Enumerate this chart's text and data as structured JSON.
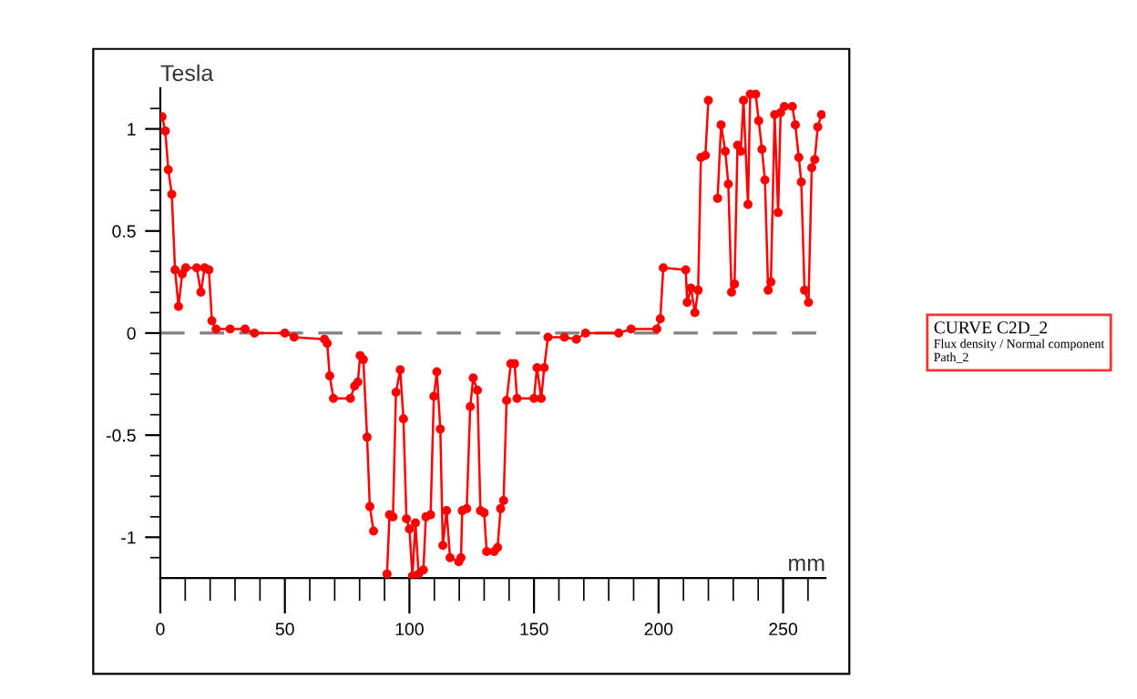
{
  "chart_data": {
    "type": "line",
    "xlabel": "mm",
    "ylabel": "Tesla",
    "xlim": [
      0,
      267
    ],
    "ylim": [
      -1.2,
      1.2
    ],
    "xticks": [
      0,
      {
        "value": 10,
        "label": null
      },
      {
        "value": 20,
        "label": null
      },
      {
        "value": 30,
        "label": null
      },
      {
        "value": 40,
        "label": null
      },
      50,
      {
        "value": 60,
        "label": null
      },
      {
        "value": 70,
        "label": null
      },
      {
        "value": 80,
        "label": null
      },
      {
        "value": 90,
        "label": null
      },
      100,
      {
        "value": 110,
        "label": null
      },
      {
        "value": 120,
        "label": null
      },
      {
        "value": 130,
        "label": null
      },
      {
        "value": 140,
        "label": null
      },
      150,
      {
        "value": 160,
        "label": null
      },
      {
        "value": 170,
        "label": null
      },
      {
        "value": 180,
        "label": null
      },
      {
        "value": 190,
        "label": null
      },
      200,
      {
        "value": 210,
        "label": null
      },
      {
        "value": 220,
        "label": null
      },
      {
        "value": 230,
        "label": null
      },
      {
        "value": 240,
        "label": null
      },
      250,
      {
        "value": 260,
        "label": null
      }
    ],
    "yticks": [
      {
        "value": -1.1,
        "label": null
      },
      -1,
      {
        "value": -0.9,
        "label": null
      },
      {
        "value": -0.8,
        "label": null
      },
      {
        "value": -0.7,
        "label": null
      },
      {
        "value": -0.6,
        "label": null
      },
      -0.5,
      {
        "value": -0.4,
        "label": null
      },
      {
        "value": -0.3,
        "label": null
      },
      {
        "value": -0.2,
        "label": null
      },
      {
        "value": -0.1,
        "label": null
      },
      0,
      {
        "value": 0.1,
        "label": null
      },
      {
        "value": 0.2,
        "label": null
      },
      {
        "value": 0.3,
        "label": null
      },
      {
        "value": 0.4,
        "label": null
      },
      0.5,
      {
        "value": 0.6,
        "label": null
      },
      {
        "value": 0.7,
        "label": null
      },
      {
        "value": 0.8,
        "label": null
      },
      {
        "value": 0.9,
        "label": null
      },
      1,
      {
        "value": 1.1,
        "label": null
      }
    ],
    "ref_lines": [
      {
        "axis": "y",
        "value": 0,
        "label": null,
        "color": "#808080",
        "line_style": "dashed"
      }
    ],
    "grid": false,
    "legend": "right",
    "marker": "circle",
    "line_style": "solid",
    "annotations": [
      "Flux density / Normal component",
      "Path_2"
    ],
    "series": [
      {
        "name": "CURVE C2D_2",
        "color": "#ff0000",
        "x": [
          0.7,
          2,
          3.2,
          4.6,
          5.9,
          7.3,
          8.8,
          10.2,
          14.6,
          16.3,
          17.8,
          19.5,
          20.7,
          22.4,
          28,
          34,
          37.8,
          50,
          53.7,
          65.9,
          67,
          68,
          69.5,
          76.3,
          78,
          79.3,
          80.2,
          81.5,
          83,
          84.1,
          85.6,
          86.8,
          89.5,
          91,
          92,
          93.4,
          94.6,
          96.3,
          97.6,
          98.8,
          100,
          101.2,
          102.4,
          103.7,
          105.6,
          106.6,
          108.5,
          109.8,
          111,
          112.4,
          113.4,
          114.9,
          116.3,
          119.8,
          120.7,
          121.2,
          123,
          124.4,
          125.6,
          127.3,
          128.5,
          130,
          131,
          134,
          135.4,
          136.6,
          137.8,
          139,
          140.7,
          142.2,
          143.2,
          150,
          151.2,
          152.9,
          154.1,
          155.6,
          162.2,
          167,
          170.7,
          184,
          189,
          199.3,
          200.7,
          201.9,
          210.9,
          211.5,
          213,
          214.6,
          215.9,
          217,
          218.8,
          220,
          221.2,
          222.7,
          223.7,
          225.1,
          226.8,
          228,
          229.3,
          230.5,
          231.7,
          233,
          234.1,
          235.9,
          236.8,
          239,
          240.2,
          241.5,
          242.7,
          244,
          245.1,
          246.6,
          248,
          249,
          250.5,
          253.7,
          254.9,
          256.3,
          257.3,
          258.6,
          260.2,
          261.5,
          262.7,
          263.9,
          265.4
        ],
        "values": [
          1.06,
          0.99,
          0.8,
          0.68,
          0.31,
          0.13,
          0.29,
          0.32,
          0.32,
          0.2,
          0.32,
          0.31,
          0.06,
          0.02,
          0.02,
          0.02,
          0,
          0,
          -0.02,
          -0.03,
          -0.05,
          -0.21,
          -0.32,
          -0.32,
          -0.26,
          -0.24,
          -0.11,
          -0.13,
          -0.51,
          -0.85,
          -0.97,
          null,
          null,
          -1.18,
          -0.89,
          -0.9,
          -0.29,
          -0.18,
          -0.42,
          -0.91,
          -0.96,
          -1.19,
          -0.93,
          -1.18,
          -1.16,
          -0.9,
          -0.89,
          -0.31,
          -0.19,
          -0.47,
          -1.04,
          -0.87,
          -1.1,
          -1.12,
          -1.1,
          -0.87,
          -0.86,
          -0.36,
          -0.22,
          -0.28,
          -0.87,
          -0.88,
          -1.07,
          -1.07,
          -1.05,
          -0.86,
          -0.82,
          -0.33,
          -0.15,
          -0.15,
          -0.32,
          -0.32,
          -0.17,
          -0.32,
          -0.17,
          -0.02,
          -0.02,
          -0.03,
          0,
          0,
          0.02,
          0.02,
          0.07,
          0.32,
          0.31,
          0.15,
          0.22,
          0.1,
          0.21,
          0.86,
          0.87,
          1.14,
          null,
          null,
          0.66,
          1.02,
          0.89,
          0.73,
          0.2,
          0.24,
          0.92,
          0.89,
          1.14,
          0.63,
          1.17,
          1.17,
          1.04,
          0.9,
          0.75,
          0.21,
          0.25,
          1.07,
          0.59,
          1.08,
          1.11,
          1.11,
          1.02,
          0.86,
          0.74,
          0.21,
          0.15,
          0.81,
          0.85,
          1.01,
          1.07
        ]
      }
    ]
  }
}
